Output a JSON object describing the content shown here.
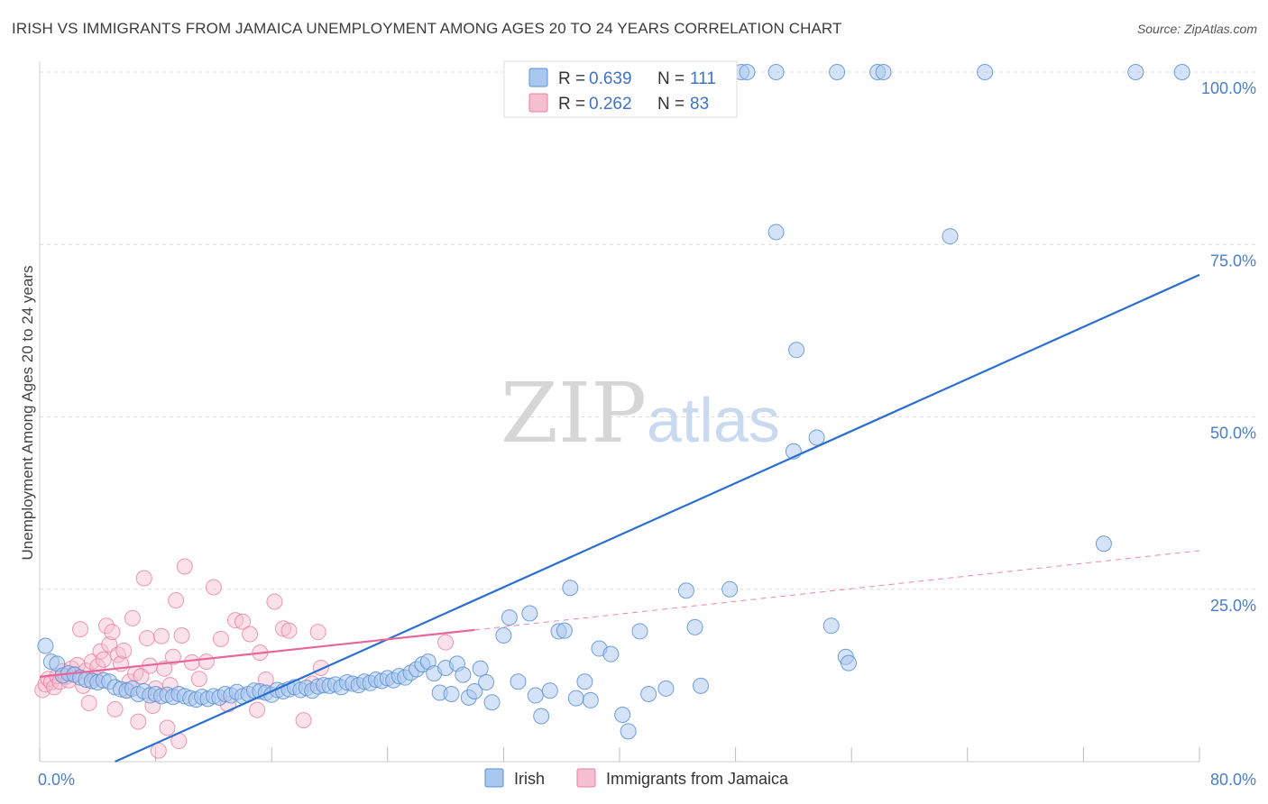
{
  "title": "IRISH VS IMMIGRANTS FROM JAMAICA UNEMPLOYMENT AMONG AGES 20 TO 24 YEARS CORRELATION CHART",
  "source": "Source: ZipAtlas.com",
  "watermark": {
    "zip": "ZIP",
    "atlas": "atlas"
  },
  "legend": {
    "items": [
      {
        "r_label": "R =",
        "r_value": "0.639",
        "n_label": "N =",
        "n_value": "111"
      },
      {
        "r_label": "R =",
        "r_value": "0.262",
        "n_label": "N =",
        "n_value": "83"
      }
    ]
  },
  "bottom_legend": {
    "series1": "Irish",
    "series2": "Immigrants from Jamaica"
  },
  "colors": {
    "irish_fill": "#a9c8f0",
    "irish_stroke": "#5b8fd6",
    "irish_line": "#2a6fcf",
    "jam_fill": "#f6bfd0",
    "jam_stroke": "#ea7fa0",
    "jam_line": "#e8679a",
    "grid": "#dddddd",
    "tick_text": "#4a7ec9"
  },
  "chart_data": {
    "type": "scatter",
    "title": "IRISH VS IMMIGRANTS FROM JAMAICA UNEMPLOYMENT AMONG AGES 20 TO 24 YEARS CORRELATION CHART",
    "xlabel": "",
    "ylabel": "Unemployment Among Ages 20 to 24 years",
    "xlim": [
      0,
      80
    ],
    "ylim": [
      0,
      100
    ],
    "x_tick_labels": [
      "0.0%",
      "80.0%"
    ],
    "y_ticks": [
      25,
      50,
      75,
      100
    ],
    "y_tick_labels": [
      "25.0%",
      "50.0%",
      "75.0%",
      "100.0%"
    ],
    "series": [
      {
        "name": "Irish",
        "R": 0.639,
        "N": 111,
        "trend": {
          "x": [
            5.2,
            80
          ],
          "y": [
            0,
            70.6
          ],
          "style": "solid"
        },
        "points": [
          [
            0.4,
            16.8
          ],
          [
            0.8,
            14.5
          ],
          [
            1.2,
            14.2
          ],
          [
            1.6,
            12.5
          ],
          [
            2.0,
            12.8
          ],
          [
            2.4,
            12.6
          ],
          [
            2.8,
            12.2
          ],
          [
            3.2,
            11.9
          ],
          [
            3.6,
            11.7
          ],
          [
            4.0,
            11.5
          ],
          [
            4.4,
            11.8
          ],
          [
            4.8,
            11.6
          ],
          [
            5.2,
            10.8
          ],
          [
            5.6,
            10.5
          ],
          [
            6.0,
            10.3
          ],
          [
            6.4,
            10.6
          ],
          [
            6.8,
            9.8
          ],
          [
            7.2,
            10.2
          ],
          [
            7.6,
            9.6
          ],
          [
            8.0,
            9.8
          ],
          [
            8.4,
            9.5
          ],
          [
            8.8,
            9.7
          ],
          [
            9.2,
            9.4
          ],
          [
            9.6,
            9.8
          ],
          [
            10.0,
            9.5
          ],
          [
            10.4,
            9.2
          ],
          [
            10.8,
            9.0
          ],
          [
            11.2,
            9.4
          ],
          [
            11.6,
            9.1
          ],
          [
            12.0,
            9.5
          ],
          [
            12.4,
            9.3
          ],
          [
            12.8,
            9.8
          ],
          [
            13.2,
            9.6
          ],
          [
            13.6,
            10.1
          ],
          [
            14.0,
            9.5
          ],
          [
            14.4,
            9.8
          ],
          [
            14.8,
            10.3
          ],
          [
            15.2,
            10.2
          ],
          [
            15.6,
            10.0
          ],
          [
            16.0,
            9.7
          ],
          [
            16.4,
            10.4
          ],
          [
            16.8,
            10.2
          ],
          [
            17.2,
            10.5
          ],
          [
            17.6,
            10.8
          ],
          [
            18.0,
            10.4
          ],
          [
            18.4,
            10.7
          ],
          [
            18.8,
            10.3
          ],
          [
            19.2,
            10.9
          ],
          [
            19.6,
            11.1
          ],
          [
            20.0,
            11.0
          ],
          [
            20.4,
            11.2
          ],
          [
            20.8,
            10.8
          ],
          [
            21.2,
            11.5
          ],
          [
            21.6,
            11.3
          ],
          [
            22.0,
            11.1
          ],
          [
            22.4,
            11.6
          ],
          [
            22.8,
            11.4
          ],
          [
            23.2,
            11.9
          ],
          [
            23.6,
            11.7
          ],
          [
            24.0,
            12.1
          ],
          [
            24.4,
            11.8
          ],
          [
            24.8,
            12.4
          ],
          [
            25.2,
            12.2
          ],
          [
            25.6,
            12.9
          ],
          [
            26.0,
            13.4
          ],
          [
            26.4,
            14.1
          ],
          [
            26.8,
            14.5
          ],
          [
            27.2,
            12.8
          ],
          [
            27.6,
            10.0
          ],
          [
            28.0,
            13.6
          ],
          [
            28.4,
            9.8
          ],
          [
            28.8,
            14.2
          ],
          [
            29.2,
            12.6
          ],
          [
            29.6,
            9.3
          ],
          [
            30.0,
            10.2
          ],
          [
            30.4,
            13.5
          ],
          [
            30.8,
            11.5
          ],
          [
            31.2,
            8.6
          ],
          [
            32.0,
            18.3
          ],
          [
            32.4,
            20.9
          ],
          [
            33.0,
            11.6
          ],
          [
            33.8,
            21.5
          ],
          [
            34.2,
            9.6
          ],
          [
            34.6,
            6.6
          ],
          [
            35.2,
            10.3
          ],
          [
            35.8,
            18.9
          ],
          [
            36.2,
            19.0
          ],
          [
            36.6,
            25.2
          ],
          [
            37.0,
            9.2
          ],
          [
            37.6,
            11.6
          ],
          [
            38.0,
            8.9
          ],
          [
            38.6,
            16.4
          ],
          [
            39.4,
            15.6
          ],
          [
            40.2,
            6.8
          ],
          [
            40.6,
            4.4
          ],
          [
            41.4,
            18.9
          ],
          [
            42.0,
            9.8
          ],
          [
            43.2,
            10.6
          ],
          [
            44.6,
            24.8
          ],
          [
            45.2,
            19.5
          ],
          [
            45.6,
            11.0
          ],
          [
            47.6,
            25.0
          ],
          [
            48.4,
            100
          ],
          [
            48.8,
            100
          ],
          [
            50.8,
            100
          ],
          [
            50.8,
            76.8
          ],
          [
            52.2,
            59.7
          ],
          [
            52.0,
            45.0
          ],
          [
            53.6,
            47.0
          ],
          [
            54.6,
            19.7
          ],
          [
            55.0,
            100
          ],
          [
            55.6,
            15.2
          ],
          [
            55.8,
            14.3
          ],
          [
            57.8,
            100
          ],
          [
            58.2,
            100
          ],
          [
            62.8,
            76.2
          ],
          [
            65.2,
            100
          ],
          [
            73.4,
            31.6
          ],
          [
            75.6,
            100
          ],
          [
            78.8,
            100
          ]
        ]
      },
      {
        "name": "Immigrants from Jamaica",
        "R": 0.262,
        "N": 83,
        "trend": {
          "x": [
            0,
            30
          ],
          "y": [
            12.3,
            19.1
          ],
          "style": "solid",
          "dashed_x": [
            30,
            80
          ],
          "dashed_y": [
            19.1,
            30.6
          ]
        },
        "points": [
          [
            0.2,
            10.4
          ],
          [
            0.4,
            11.2
          ],
          [
            0.6,
            12.0
          ],
          [
            0.8,
            11.5
          ],
          [
            1.0,
            10.8
          ],
          [
            1.2,
            12.4
          ],
          [
            1.4,
            11.6
          ],
          [
            1.6,
            13.1
          ],
          [
            1.8,
            12.3
          ],
          [
            2.0,
            11.8
          ],
          [
            2.2,
            13.5
          ],
          [
            2.4,
            12.7
          ],
          [
            2.6,
            14.0
          ],
          [
            2.8,
            19.2
          ],
          [
            3.0,
            11.0
          ],
          [
            3.2,
            13.2
          ],
          [
            3.4,
            8.5
          ],
          [
            3.6,
            14.5
          ],
          [
            3.8,
            12.1
          ],
          [
            4.0,
            13.8
          ],
          [
            4.2,
            16.0
          ],
          [
            4.4,
            14.8
          ],
          [
            4.6,
            19.7
          ],
          [
            4.8,
            17.0
          ],
          [
            5.0,
            18.8
          ],
          [
            5.2,
            7.6
          ],
          [
            5.4,
            15.5
          ],
          [
            5.6,
            14.2
          ],
          [
            5.8,
            16.1
          ],
          [
            6.0,
            10.4
          ],
          [
            6.2,
            11.6
          ],
          [
            6.4,
            20.8
          ],
          [
            6.6,
            12.8
          ],
          [
            6.8,
            5.8
          ],
          [
            7.0,
            12.4
          ],
          [
            7.2,
            26.6
          ],
          [
            7.4,
            17.9
          ],
          [
            7.6,
            13.9
          ],
          [
            7.8,
            8.1
          ],
          [
            8.0,
            10.6
          ],
          [
            8.2,
            1.6
          ],
          [
            8.4,
            18.2
          ],
          [
            8.6,
            13.5
          ],
          [
            8.8,
            4.9
          ],
          [
            9.0,
            11.1
          ],
          [
            9.2,
            15.2
          ],
          [
            9.4,
            23.4
          ],
          [
            9.6,
            3.0
          ],
          [
            9.8,
            18.3
          ],
          [
            10.0,
            28.3
          ],
          [
            10.5,
            14.4
          ],
          [
            11.0,
            12.0
          ],
          [
            11.5,
            14.5
          ],
          [
            12.0,
            25.3
          ],
          [
            12.5,
            17.8
          ],
          [
            13.0,
            8.3
          ],
          [
            13.5,
            20.5
          ],
          [
            14.0,
            20.3
          ],
          [
            14.5,
            18.5
          ],
          [
            15.0,
            7.5
          ],
          [
            15.2,
            15.8
          ],
          [
            15.6,
            11.9
          ],
          [
            16.2,
            23.2
          ],
          [
            16.8,
            19.3
          ],
          [
            17.2,
            19.0
          ],
          [
            18.2,
            6.0
          ],
          [
            18.8,
            11.3
          ],
          [
            19.2,
            18.8
          ],
          [
            19.4,
            13.6
          ],
          [
            28.0,
            17.3
          ]
        ]
      }
    ]
  }
}
